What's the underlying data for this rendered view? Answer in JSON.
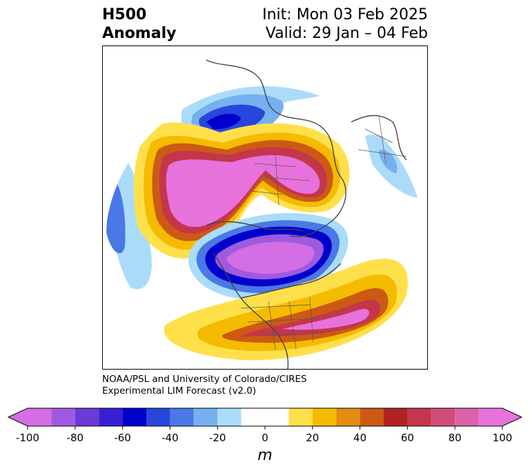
{
  "title": {
    "variable": "H500",
    "field": "Anomaly",
    "init": "Init: Mon 03 Feb 2025",
    "valid": "Valid: 29 Jan – 04 Feb"
  },
  "credit": {
    "line1": "NOAA/PSL and University of Colorado/CIRES",
    "line2": "Experimental LIM Forecast (v2.0)"
  },
  "colorbar": {
    "unit": "m",
    "ticks": [
      "-100",
      "-80",
      "-60",
      "-40",
      "-20",
      "0",
      "20",
      "40",
      "60",
      "80",
      "100"
    ],
    "levels": [
      {
        "min": -100,
        "max": -90,
        "color": "#d36ee5"
      },
      {
        "min": -90,
        "max": -80,
        "color": "#a05ae0"
      },
      {
        "min": -80,
        "max": -70,
        "color": "#6c3ad8"
      },
      {
        "min": -70,
        "max": -60,
        "color": "#3a1fd2"
      },
      {
        "min": -60,
        "max": -50,
        "color": "#0000cc"
      },
      {
        "min": -50,
        "max": -40,
        "color": "#2747dc"
      },
      {
        "min": -40,
        "max": -30,
        "color": "#4a78e6"
      },
      {
        "min": -30,
        "max": -20,
        "color": "#77b0f0"
      },
      {
        "min": -20,
        "max": -10,
        "color": "#aadcfa"
      },
      {
        "min": -10,
        "max": 10,
        "color": "#ffffff"
      },
      {
        "min": 10,
        "max": 20,
        "color": "#ffe04a"
      },
      {
        "min": 20,
        "max": 30,
        "color": "#f5bb00"
      },
      {
        "min": 30,
        "max": 40,
        "color": "#e38c10"
      },
      {
        "min": 40,
        "max": 50,
        "color": "#cc5a14"
      },
      {
        "min": 50,
        "max": 60,
        "color": "#b22222"
      },
      {
        "min": 60,
        "max": 70,
        "color": "#c4364a"
      },
      {
        "min": 70,
        "max": 80,
        "color": "#d04d7a"
      },
      {
        "min": 80,
        "max": 90,
        "color": "#db62a8"
      },
      {
        "min": 90,
        "max": 100,
        "color": "#e772dc"
      }
    ],
    "extend_low_color": "#d36ee5",
    "extend_high_color": "#e772dc"
  }
}
